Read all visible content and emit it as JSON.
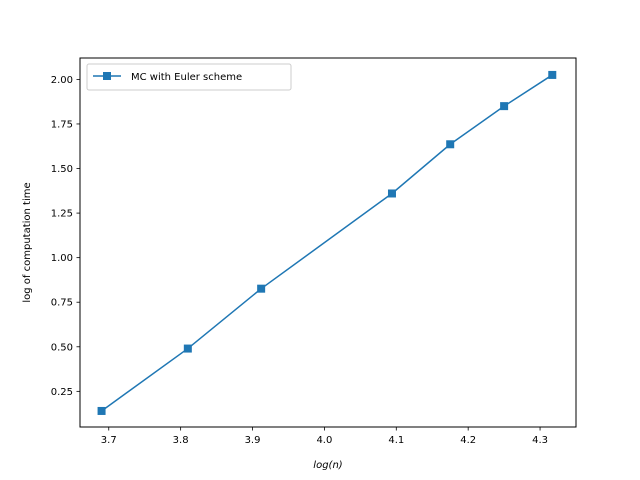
{
  "chart_data": {
    "type": "line",
    "xlabel": "log(n)",
    "ylabel": "log of computation time",
    "xlim": [
      3.66,
      4.35
    ],
    "ylim": [
      0.05,
      2.12
    ],
    "x_ticks": [
      "3.7",
      "3.8",
      "3.9",
      "4.0",
      "4.1",
      "4.2",
      "4.3"
    ],
    "y_ticks": [
      "0.25",
      "0.50",
      "0.75",
      "1.00",
      "1.25",
      "1.50",
      "1.75",
      "2.00"
    ],
    "grid": false,
    "legend_position": "top-left",
    "series": [
      {
        "name": "MC with Euler scheme",
        "color": "#1f77b4",
        "marker": "square",
        "x": [
          3.69,
          3.81,
          3.912,
          4.094,
          4.175,
          4.25,
          4.317
        ],
        "y": [
          0.14,
          0.49,
          0.826,
          1.36,
          1.636,
          1.85,
          2.025
        ]
      }
    ]
  }
}
